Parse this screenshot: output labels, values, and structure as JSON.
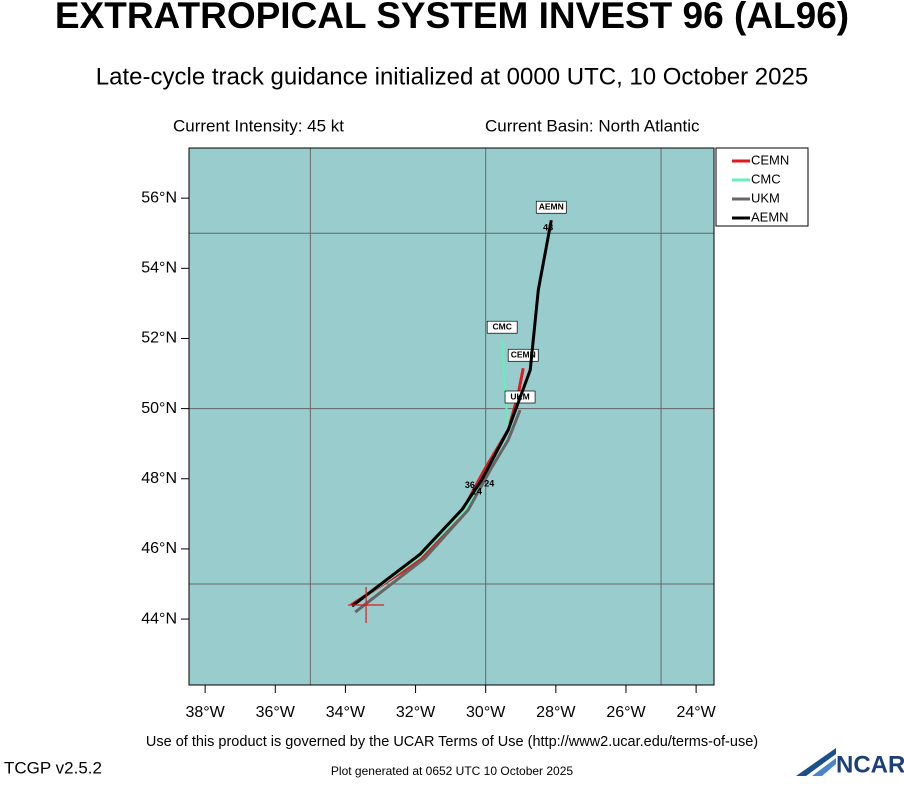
{
  "chart_data": {
    "type": "line",
    "title": "EXTRATROPICAL SYSTEM INVEST 96 (AL96)",
    "subtitle": "Late-cycle track guidance initialized at 0000 UTC, 10 October 2025",
    "intensity": "Current Intensity: 45 kt",
    "basin": "Current Basin: North Atlantic",
    "xlim": [
      -38.46,
      -23.49
    ],
    "ylim": [
      42.12,
      57.43
    ],
    "xticks": [
      {
        "value": -38,
        "label": "38°W"
      },
      {
        "value": -36,
        "label": "36°W"
      },
      {
        "value": -34,
        "label": "34°W"
      },
      {
        "value": -32,
        "label": "32°W"
      },
      {
        "value": -30,
        "label": "30°W"
      },
      {
        "value": -28,
        "label": "28°W"
      },
      {
        "value": -26,
        "label": "26°W"
      },
      {
        "value": -24,
        "label": "24°W"
      }
    ],
    "yticks": [
      {
        "value": 44,
        "label": "44°N"
      },
      {
        "value": 46,
        "label": "46°N"
      },
      {
        "value": 48,
        "label": "48°N"
      },
      {
        "value": 50,
        "label": "50°N"
      },
      {
        "value": 52,
        "label": "52°N"
      },
      {
        "value": 54,
        "label": "54°N"
      },
      {
        "value": 56,
        "label": "56°N"
      }
    ],
    "xgrid": [
      -35,
      -30,
      -25
    ],
    "ygrid": [
      45,
      50,
      55
    ],
    "background": "#99cccc",
    "series": [
      {
        "name": "CEMN",
        "color": "#e0191e",
        "x": [
          -33.84,
          -31.87,
          -30.73,
          -30.04,
          -29.36,
          -29.08,
          -28.93
        ],
        "values": [
          44.4,
          45.68,
          46.96,
          48.25,
          49.39,
          50.38,
          51.15
        ]
      },
      {
        "name": "CMC",
        "color": "#66eebb",
        "x": [
          -33.81,
          -31.87,
          -30.59,
          -29.99,
          -29.36,
          -29.47,
          -29.53
        ],
        "values": [
          44.37,
          45.77,
          47.11,
          48.11,
          49.39,
          50.81,
          51.95
        ]
      },
      {
        "name": "UKM",
        "color": "#666666",
        "x": [
          -33.72,
          -31.73,
          -30.5,
          -29.87,
          -29.36,
          -29.02
        ],
        "values": [
          44.2,
          45.74,
          47.11,
          48.25,
          49.1,
          49.96
        ]
      },
      {
        "name": "AEMN",
        "color": "#000000",
        "x": [
          -33.81,
          -31.87,
          -30.67,
          -30.1,
          -29.36,
          -28.73,
          -28.5,
          -28.13
        ],
        "values": [
          44.37,
          45.85,
          47.13,
          47.99,
          49.39,
          51.1,
          53.38,
          55.37
        ]
      }
    ],
    "current_position": {
      "x": -33.41,
      "y": 44.4,
      "color": "#e0191e"
    },
    "annotations": [
      {
        "text": "48",
        "x": -28.22,
        "y": 55.15
      },
      {
        "text": "24",
        "x": -30.25,
        "y": 47.62
      },
      {
        "text": "36",
        "x": -30.45,
        "y": 47.8
      },
      {
        "text": "24",
        "x": -29.9,
        "y": 47.85
      }
    ]
  },
  "footer": {
    "terms": "Use of this product is governed by the UCAR Terms of Use (http://www2.ucar.edu/terms-of-use)",
    "version": "TCGP v2.5.2",
    "generated": "Plot generated at 0652 UTC   10 October 2025",
    "logo": "NCAR"
  }
}
